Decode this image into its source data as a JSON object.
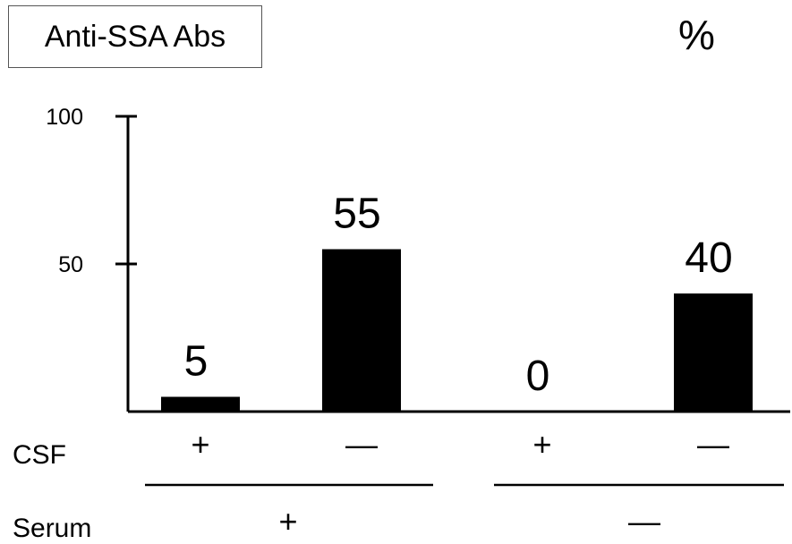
{
  "chart_data": {
    "type": "bar",
    "title": "Anti-SSA Abs",
    "unit_label": "%",
    "ylim": [
      0,
      100
    ],
    "yticks": [
      50,
      100
    ],
    "bar_color": "#000000",
    "categories": [
      {
        "csf": "+",
        "serum": "+"
      },
      {
        "csf": "—",
        "serum": "+"
      },
      {
        "csf": "+",
        "serum": "—"
      },
      {
        "csf": "—",
        "serum": "—"
      }
    ],
    "values": [
      5,
      55,
      0,
      40
    ],
    "row_labels": {
      "csf": "CSF",
      "serum": "Serum"
    },
    "serum_groups": [
      "+",
      "—"
    ]
  }
}
